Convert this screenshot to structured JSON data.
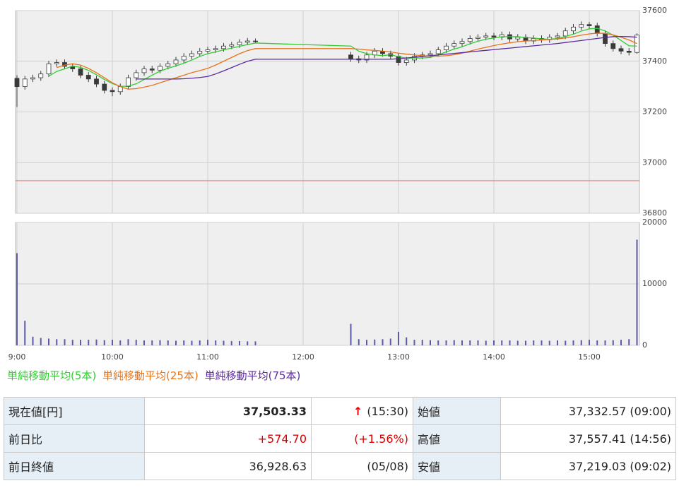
{
  "chart_data": [
    {
      "type": "candlestick",
      "x": [
        "9:00",
        "9:05",
        "9:10",
        "9:15",
        "9:20",
        "9:25",
        "9:30",
        "9:35",
        "9:40",
        "9:45",
        "9:50",
        "9:55",
        "10:00",
        "10:05",
        "10:10",
        "10:15",
        "10:20",
        "10:25",
        "10:30",
        "10:35",
        "10:40",
        "10:45",
        "10:50",
        "10:55",
        "11:00",
        "11:05",
        "11:10",
        "11:15",
        "11:20",
        "11:25",
        "11:30",
        "12:30",
        "12:35",
        "12:40",
        "12:45",
        "12:50",
        "12:55",
        "13:00",
        "13:05",
        "13:10",
        "13:15",
        "13:20",
        "13:25",
        "13:30",
        "13:35",
        "13:40",
        "13:45",
        "13:50",
        "13:55",
        "14:00",
        "14:05",
        "14:10",
        "14:15",
        "14:20",
        "14:25",
        "14:30",
        "14:35",
        "14:40",
        "14:45",
        "14:50",
        "14:55",
        "15:00",
        "15:05",
        "15:10",
        "15:15",
        "15:20",
        "15:25",
        "15:30"
      ],
      "open": [
        37332.57,
        37300,
        37330,
        37335,
        37350,
        37390,
        37395,
        37380,
        37370,
        37345,
        37330,
        37310,
        37285,
        37280,
        37300,
        37335,
        37355,
        37370,
        37365,
        37380,
        37390,
        37405,
        37420,
        37430,
        37440,
        37445,
        37450,
        37460,
        37465,
        37475,
        37480,
        37425,
        37410,
        37405,
        37425,
        37440,
        37430,
        37420,
        37395,
        37405,
        37420,
        37425,
        37430,
        37445,
        37460,
        37470,
        37478,
        37490,
        37495,
        37500,
        37495,
        37505,
        37488,
        37495,
        37480,
        37490,
        37485,
        37495,
        37500,
        37520,
        37535,
        37545,
        37540,
        37510,
        37470,
        37450,
        37440,
        37435
      ],
      "high": [
        37345,
        37342,
        37347,
        37362,
        37402,
        37407,
        37407,
        37392,
        37382,
        37357,
        37342,
        37322,
        37297,
        37312,
        37347,
        37367,
        37382,
        37382,
        37392,
        37402,
        37417,
        37432,
        37442,
        37452,
        37457,
        37462,
        37472,
        37477,
        37487,
        37492,
        37490,
        37437,
        37422,
        37437,
        37452,
        37452,
        37442,
        37432,
        37417,
        37432,
        37437,
        37442,
        37457,
        37472,
        37482,
        37490,
        37502,
        37507,
        37512,
        37512,
        37517,
        37517,
        37507,
        37507,
        37502,
        37502,
        37507,
        37512,
        37532,
        37547,
        37557.41,
        37555,
        37552,
        37522,
        37482,
        37462,
        37452,
        37510
      ],
      "low": [
        37219.03,
        37288,
        37318,
        37323,
        37338,
        37378,
        37368,
        37358,
        37333,
        37318,
        37298,
        37273,
        37262,
        37268,
        37288,
        37323,
        37343,
        37353,
        37353,
        37368,
        37378,
        37393,
        37408,
        37418,
        37428,
        37433,
        37438,
        37448,
        37453,
        37463,
        37470,
        37398,
        37393,
        37393,
        37413,
        37418,
        37408,
        37383,
        37383,
        37393,
        37408,
        37413,
        37418,
        37433,
        37448,
        37458,
        37466,
        37478,
        37483,
        37483,
        37483,
        37476,
        37476,
        37468,
        37468,
        37473,
        37473,
        37483,
        37488,
        37508,
        37523,
        37528,
        37498,
        37458,
        37438,
        37428,
        37423,
        37430
      ],
      "close": [
        37300,
        37330,
        37335,
        37350,
        37390,
        37395,
        37380,
        37370,
        37345,
        37330,
        37310,
        37285,
        37280,
        37300,
        37335,
        37355,
        37370,
        37365,
        37380,
        37390,
        37405,
        37420,
        37430,
        37440,
        37445,
        37450,
        37460,
        37465,
        37475,
        37480,
        37478,
        37410,
        37405,
        37425,
        37440,
        37430,
        37420,
        37395,
        37405,
        37420,
        37425,
        37430,
        37445,
        37460,
        37470,
        37478,
        37490,
        37495,
        37500,
        37495,
        37505,
        37488,
        37495,
        37480,
        37490,
        37485,
        37495,
        37500,
        37520,
        37535,
        37545,
        37540,
        37510,
        37470,
        37450,
        37440,
        37435,
        37503.33
      ],
      "up_color": "#ffffff",
      "down_color": "#3a3a3a",
      "edge_color": "#3a3a3a",
      "series": [
        {
          "name": "単純移動平均(5本)",
          "color": "#33cc33",
          "values": [
            null,
            null,
            null,
            null,
            37341,
            37360,
            37370,
            37381,
            37376,
            37364,
            37347,
            37328,
            37312,
            37301,
            37302,
            37311,
            37328,
            37345,
            37361,
            37372,
            37382,
            37392,
            37405,
            37419,
            37430,
            37437,
            37445,
            37452,
            37459,
            37466,
            37472,
            37460,
            37440,
            37430,
            37425,
            37422,
            37426,
            37418,
            37412,
            37413,
            37413,
            37415,
            37425,
            37437,
            37448,
            37457,
            37469,
            37479,
            37487,
            37492,
            37497,
            37497,
            37497,
            37493,
            37492,
            37488,
            37487,
            37490,
            37498,
            37507,
            37519,
            37528,
            37530,
            37520,
            37503,
            37482,
            37461,
            37460
          ]
        },
        {
          "name": "単純移動平均(25本)",
          "color": "#e8731a",
          "values": [
            null,
            null,
            null,
            null,
            null,
            37375,
            37385,
            37390,
            37385,
            37372,
            37355,
            37335,
            37315,
            37300,
            37290,
            37292,
            37298,
            37305,
            37315,
            37325,
            37335,
            37345,
            37355,
            37363,
            37372,
            37385,
            37400,
            37415,
            37430,
            37442,
            37450,
            37450,
            37448,
            37445,
            37443,
            37440,
            37437,
            37432,
            37428,
            37425,
            37422,
            37420,
            37420,
            37422,
            37426,
            37432,
            37440,
            37448,
            37455,
            37462,
            37468,
            37473,
            37477,
            37480,
            37482,
            37484,
            37486,
            37488,
            37492,
            37497,
            37503,
            37508,
            37511,
            37510,
            37504,
            37495,
            37484,
            37470
          ]
        },
        {
          "name": "単純移動平均(75本)",
          "color": "#5b2a9e",
          "values": [
            null,
            null,
            null,
            null,
            null,
            null,
            null,
            null,
            null,
            null,
            null,
            null,
            null,
            null,
            null,
            37330,
            37330,
            37330,
            37330,
            37330,
            37330,
            37331,
            37333,
            37336,
            37340,
            37350,
            37362,
            37375,
            37388,
            37400,
            37408,
            37408,
            37408,
            37408,
            37408,
            37408,
            37408,
            37410,
            37413,
            37416,
            37419,
            37422,
            37425,
            37428,
            37431,
            37434,
            37437,
            37440,
            37443,
            37446,
            37449,
            37452,
            37455,
            37458,
            37461,
            37464,
            37467,
            37470,
            37474,
            37478,
            37482,
            37486,
            37490,
            37494,
            37497,
            37498,
            37497,
            37495
          ]
        }
      ],
      "reference_line": {
        "value": 36928.63,
        "color": "#f08a8a"
      },
      "xlim": [
        "9:00",
        "15:32"
      ],
      "ylim": [
        36800,
        37600
      ],
      "yticks": [
        36800,
        37000,
        37200,
        37400,
        37600
      ],
      "grid": true
    },
    {
      "type": "bar",
      "x": [
        "9:00",
        "9:05",
        "9:10",
        "9:15",
        "9:20",
        "9:25",
        "9:30",
        "9:35",
        "9:40",
        "9:45",
        "9:50",
        "9:55",
        "10:00",
        "10:05",
        "10:10",
        "10:15",
        "10:20",
        "10:25",
        "10:30",
        "10:35",
        "10:40",
        "10:45",
        "10:50",
        "10:55",
        "11:00",
        "11:05",
        "11:10",
        "11:15",
        "11:20",
        "11:25",
        "11:30",
        "12:30",
        "12:35",
        "12:40",
        "12:45",
        "12:50",
        "12:55",
        "13:00",
        "13:05",
        "13:10",
        "13:15",
        "13:20",
        "13:25",
        "13:30",
        "13:35",
        "13:40",
        "13:45",
        "13:50",
        "13:55",
        "14:00",
        "14:05",
        "14:10",
        "14:15",
        "14:20",
        "14:25",
        "14:30",
        "14:35",
        "14:40",
        "14:45",
        "14:50",
        "14:55",
        "15:00",
        "15:05",
        "15:10",
        "15:15",
        "15:20",
        "15:25",
        "15:30"
      ],
      "values": [
        15000,
        4000,
        1400,
        1200,
        1100,
        1000,
        1000,
        900,
        900,
        900,
        950,
        850,
        900,
        800,
        1000,
        900,
        800,
        800,
        850,
        800,
        750,
        800,
        750,
        800,
        900,
        800,
        750,
        700,
        700,
        650,
        650,
        3500,
        1000,
        900,
        950,
        1000,
        1100,
        2200,
        1300,
        900,
        900,
        850,
        800,
        800,
        850,
        800,
        800,
        800,
        750,
        800,
        800,
        800,
        750,
        750,
        800,
        800,
        750,
        800,
        750,
        800,
        850,
        900,
        800,
        800,
        850,
        900,
        1000,
        17200
      ],
      "color": "#5a5aa8",
      "xlim": [
        "9:00",
        "15:32"
      ],
      "xticks": [
        "9:00",
        "10:00",
        "11:00",
        "12:00",
        "13:00",
        "14:00",
        "15:00"
      ],
      "ylim": [
        0,
        20000
      ],
      "yticks": [
        0,
        10000,
        20000
      ],
      "grid": true
    }
  ],
  "table": {
    "rows": [
      [
        "現在値[円]",
        "37,503.33",
        "↑",
        "(15:30)",
        "始値",
        "37,332.57 (09:00)"
      ],
      [
        "前日比",
        "+574.70",
        "(+1.56%)",
        "高値",
        "37,557.41 (14:56)"
      ],
      [
        "前日終値",
        "36,928.63",
        "(05/08)",
        "安値",
        "37,219.03 (09:02)"
      ]
    ]
  }
}
